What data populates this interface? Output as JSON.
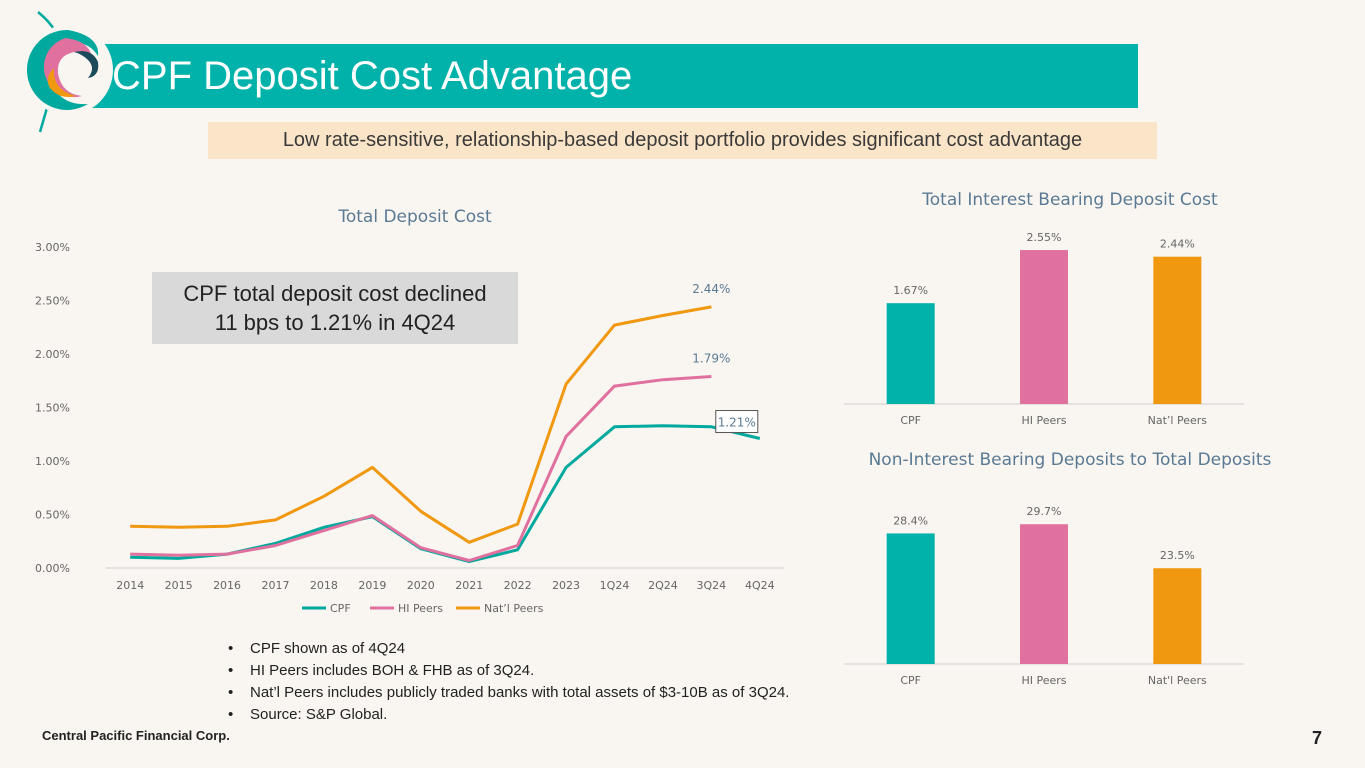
{
  "header": {
    "title": "CPF Deposit Cost Advantage",
    "subtitle": "Low rate-sensitive, relationship-based deposit portfolio provides significant cost advantage"
  },
  "logo": {
    "icon": "cpf-wave-logo-icon"
  },
  "colors": {
    "cpf": "#00a99d",
    "hi": "#e0719f",
    "natl": "#f0980f",
    "teal_bar": "#00b2a9",
    "highlight": "#fbe5c8"
  },
  "callout": {
    "line1": "CPF total deposit cost declined",
    "line2": "11 bps to 1.21% in 4Q24"
  },
  "notes": [
    "CPF shown as of 4Q24",
    "HI Peers includes BOH & FHB as of 3Q24.",
    "Nat’l Peers includes publicly traded banks with total assets of $3-10B as of 3Q24.",
    "Source: S&P Global."
  ],
  "footer": {
    "company": "Central Pacific Financial Corp.",
    "page": "7"
  },
  "chart_data": [
    {
      "type": "line",
      "title": "Total Deposit Cost",
      "x": [
        "2014",
        "2015",
        "2016",
        "2017",
        "2018",
        "2019",
        "2020",
        "2021",
        "2022",
        "2023",
        "1Q24",
        "2Q24",
        "3Q24",
        "4Q24"
      ],
      "ylim": [
        0,
        3.0
      ],
      "yticks": [
        "0.00%",
        "0.50%",
        "1.00%",
        "1.50%",
        "2.00%",
        "2.50%",
        "3.00%"
      ],
      "legend": "bottom",
      "series": [
        {
          "name": "CPF",
          "values": [
            0.1,
            0.09,
            0.13,
            0.23,
            0.38,
            0.48,
            0.18,
            0.06,
            0.17,
            0.94,
            1.32,
            1.33,
            1.32,
            1.21
          ]
        },
        {
          "name": "HI Peers",
          "values": [
            0.13,
            0.12,
            0.13,
            0.21,
            0.35,
            0.49,
            0.19,
            0.07,
            0.21,
            1.23,
            1.7,
            1.76,
            1.79,
            null
          ]
        },
        {
          "name": "Nat’l Peers",
          "values": [
            0.39,
            0.38,
            0.39,
            0.45,
            0.67,
            0.94,
            0.53,
            0.24,
            0.41,
            1.72,
            2.27,
            2.36,
            2.44,
            null
          ]
        }
      ],
      "annotations": [
        {
          "series": "Nat’l Peers",
          "x": "3Q24",
          "label": "2.44%"
        },
        {
          "series": "HI Peers",
          "x": "3Q24",
          "label": "1.79%"
        },
        {
          "series": "CPF",
          "x": "4Q24",
          "label": "1.21%",
          "boxed": true
        }
      ]
    },
    {
      "type": "bar",
      "title": "Total Interest Bearing Deposit Cost",
      "categories": [
        "CPF",
        "HI Peers",
        "Nat’l Peers"
      ],
      "values": [
        1.67,
        2.55,
        2.44
      ],
      "labels": [
        "1.67%",
        "2.55%",
        "2.44%"
      ],
      "ylim": [
        0,
        2.7
      ]
    },
    {
      "type": "bar",
      "title": "Non-Interest Bearing Deposits to Total Deposits",
      "categories": [
        "CPF",
        "HI Peers",
        "Nat'l Peers"
      ],
      "values": [
        28.4,
        29.7,
        23.5
      ],
      "labels": [
        "28.4%",
        "29.7%",
        "23.5%"
      ],
      "ylim": [
        10,
        31
      ]
    }
  ]
}
